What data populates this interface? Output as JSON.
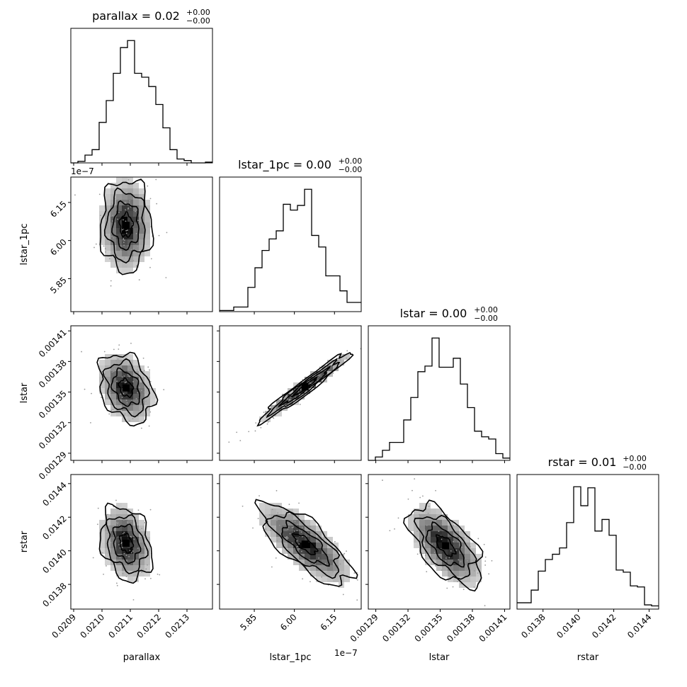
{
  "chart_data": {
    "type": "corner",
    "parameters": [
      "parallax",
      "lstar_1pc",
      "lstar",
      "rstar"
    ],
    "titles": [
      {
        "name": "parallax",
        "value": "0.02",
        "plus": "+0.00",
        "minus": "−0.00"
      },
      {
        "name": "lstar_1pc",
        "value": "0.00",
        "plus": "+0.00",
        "minus": "−0.00"
      },
      {
        "name": "lstar",
        "value": "0.00",
        "plus": "+0.00",
        "minus": "−0.00"
      },
      {
        "name": "rstar",
        "value": "0.01",
        "plus": "+0.00",
        "minus": "−0.00"
      }
    ],
    "offset_text": "1e−7",
    "axes": {
      "parallax": {
        "range": [
          0.02089,
          0.02139
        ],
        "ticks": [
          0.0209,
          0.021,
          0.0211,
          0.0212,
          0.0213
        ],
        "tick_labels": [
          "0.0209",
          "0.0210",
          "0.0211",
          "0.0212",
          "0.0213"
        ]
      },
      "lstar_1pc": {
        "range": [
          5.72,
          6.25
        ],
        "ticks": [
          5.85,
          6.0,
          6.15
        ],
        "tick_labels": [
          "5.85",
          "6.00",
          "6.15"
        ],
        "scale": "1e-7"
      },
      "lstar": {
        "range": [
          0.001283,
          0.001415
        ],
        "ticks": [
          0.00129,
          0.00132,
          0.00135,
          0.00138,
          0.00141
        ],
        "tick_labels": [
          "0.00129",
          "0.00132",
          "0.00135",
          "0.00138",
          "0.00141"
        ]
      },
      "rstar": {
        "range": [
          0.013653,
          0.014454
        ],
        "ticks": [
          0.0138,
          0.014,
          0.0142,
          0.0144
        ],
        "tick_labels": [
          "0.0138",
          "0.0140",
          "0.0142",
          "0.0144"
        ]
      }
    },
    "histograms": {
      "parallax": {
        "edges_start": 0.02089,
        "bin_width": 2.5e-05,
        "counts": [
          0,
          2,
          10,
          17,
          52,
          80,
          115,
          148,
          157,
          115,
          110,
          98,
          75,
          45,
          17,
          5,
          3,
          0,
          0,
          1
        ]
      },
      "lstar_1pc": {
        "edges_start": 5.72,
        "bin_width": 0.0265,
        "counts": [
          1,
          1,
          4,
          4,
          21,
          38,
          53,
          63,
          70,
          93,
          88,
          92,
          106,
          66,
          56,
          31,
          31,
          18,
          8,
          8
        ]
      },
      "lstar": {
        "edges_start": 0.001283,
        "bin_width": 6.6e-06,
        "counts": [
          0,
          3,
          9,
          16,
          16,
          36,
          56,
          79,
          84,
          109,
          83,
          83,
          91,
          68,
          47,
          26,
          21,
          19,
          6,
          2
        ]
      },
      "rstar": {
        "edges_start": 0.013653,
        "bin_width": 4e-05,
        "counts": [
          6,
          6,
          18,
          36,
          47,
          52,
          58,
          82,
          116,
          98,
          115,
          74,
          85,
          70,
          37,
          35,
          22,
          21,
          4,
          3
        ]
      }
    },
    "pairs": [
      {
        "x": "parallax",
        "y": "lstar_1pc",
        "mean": [
          0.021085,
          6.06
        ],
        "sd": [
          4.5e-05,
          0.09
        ],
        "rho": 0.0
      },
      {
        "x": "parallax",
        "y": "lstar",
        "mean": [
          0.021085,
          0.001354
        ],
        "sd": [
          4.8e-05,
          1.7e-05
        ],
        "rho": -0.3
      },
      {
        "x": "lstar_1pc",
        "y": "lstar",
        "mean": [
          6.04,
          0.001355
        ],
        "sd": [
          0.085,
          1.7e-05
        ],
        "rho": 0.97
      },
      {
        "x": "parallax",
        "y": "rstar",
        "mean": [
          0.021085,
          0.014045
        ],
        "sd": [
          4.5e-05,
          0.00011
        ],
        "rho": -0.25
      },
      {
        "x": "lstar_1pc",
        "y": "rstar",
        "mean": [
          6.04,
          0.01404
        ],
        "sd": [
          0.085,
          0.00012
        ],
        "rho": -0.75
      },
      {
        "x": "lstar",
        "y": "rstar",
        "mean": [
          0.001355,
          0.01403
        ],
        "sd": [
          1.7e-05,
          0.00012
        ],
        "rho": -0.6
      }
    ],
    "contour_levels": [
      0.5,
      1.0,
      1.5,
      2.0
    ]
  }
}
